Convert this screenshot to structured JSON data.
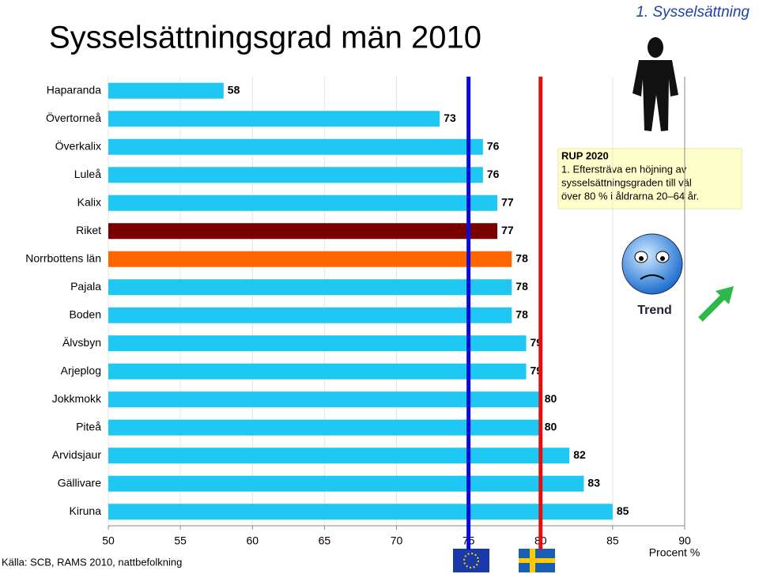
{
  "chart_data": {
    "type": "hbar",
    "section": "1. Sysselsättning",
    "title": "Sysselsättningsgrad män 2010",
    "categories": [
      "Haparanda",
      "Övertorneå",
      "Överkalix",
      "Luleå",
      "Kalix",
      "Riket",
      "Norrbottens län",
      "Pajala",
      "Boden",
      "Älvsbyn",
      "Arjeplog",
      "Jokkmokk",
      "Piteå",
      "Arvidsjaur",
      "Gällivare",
      "Kiruna"
    ],
    "values": [
      58,
      73,
      76,
      76,
      77,
      77,
      78,
      78,
      78,
      79,
      79,
      80,
      80,
      82,
      83,
      85
    ],
    "colors": [
      "#1ec8f2",
      "#1ec8f2",
      "#1ec8f2",
      "#1ec8f2",
      "#1ec8f2",
      "#7a0000",
      "#ff6600",
      "#1ec8f2",
      "#1ec8f2",
      "#1ec8f2",
      "#1ec8f2",
      "#1ec8f2",
      "#1ec8f2",
      "#1ec8f2",
      "#1ec8f2",
      "#1ec8f2"
    ],
    "xlim": [
      50,
      90
    ],
    "xticks": [
      50,
      55,
      60,
      65,
      70,
      75,
      80,
      85,
      90
    ],
    "grid": true,
    "reference_lines": [
      {
        "value": 75,
        "color": "#0a0ad8"
      },
      {
        "value": 80,
        "color": "#e01010"
      }
    ],
    "xlabel": "Procent %",
    "source": "Källa: SCB, RAMS 2010, nattbefolkning",
    "annotation": {
      "title": "RUP 2020",
      "lines": [
        "1. Eftersträva en höjning av",
        "sysselsättningsgraden till väl",
        "över 80 % i åldrarna 20–64 år."
      ]
    },
    "trend_label": "Trend"
  }
}
